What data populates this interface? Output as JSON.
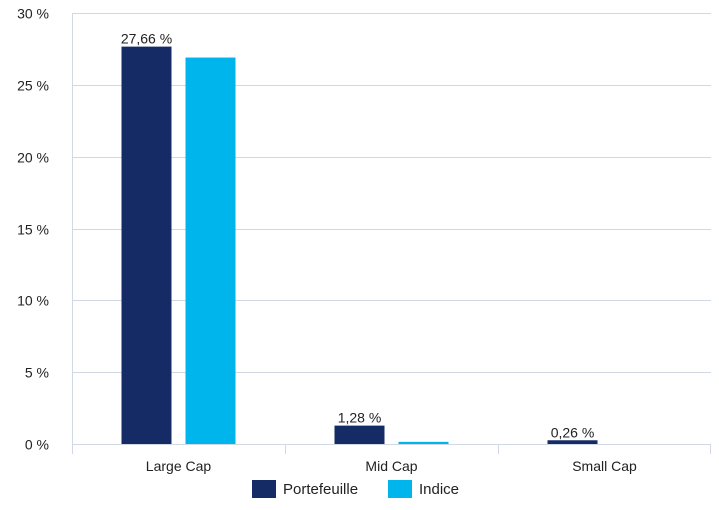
{
  "chart_data": {
    "type": "bar",
    "title": "",
    "xlabel": "",
    "ylabel": "",
    "categories": [
      "Large Cap",
      "Mid Cap",
      "Small Cap"
    ],
    "series": [
      {
        "name": "Portefeuille",
        "color": "#142b66",
        "values": [
          27.66,
          1.28,
          0.26
        ]
      },
      {
        "name": "Indice",
        "color": "#00b5ec",
        "values": [
          26.9,
          0.15,
          0.0
        ]
      }
    ],
    "data_labels": [
      "27,66 %",
      "1,28 %",
      "0,26 %"
    ],
    "ylim": [
      0,
      30
    ],
    "yticks": [
      0,
      5,
      10,
      15,
      20,
      25,
      30
    ],
    "ytick_labels": [
      "0 %",
      "5 %",
      "10 %",
      "15 %",
      "20 %",
      "25 %",
      "30 %"
    ],
    "grid": true,
    "legend_position": "bottom"
  }
}
